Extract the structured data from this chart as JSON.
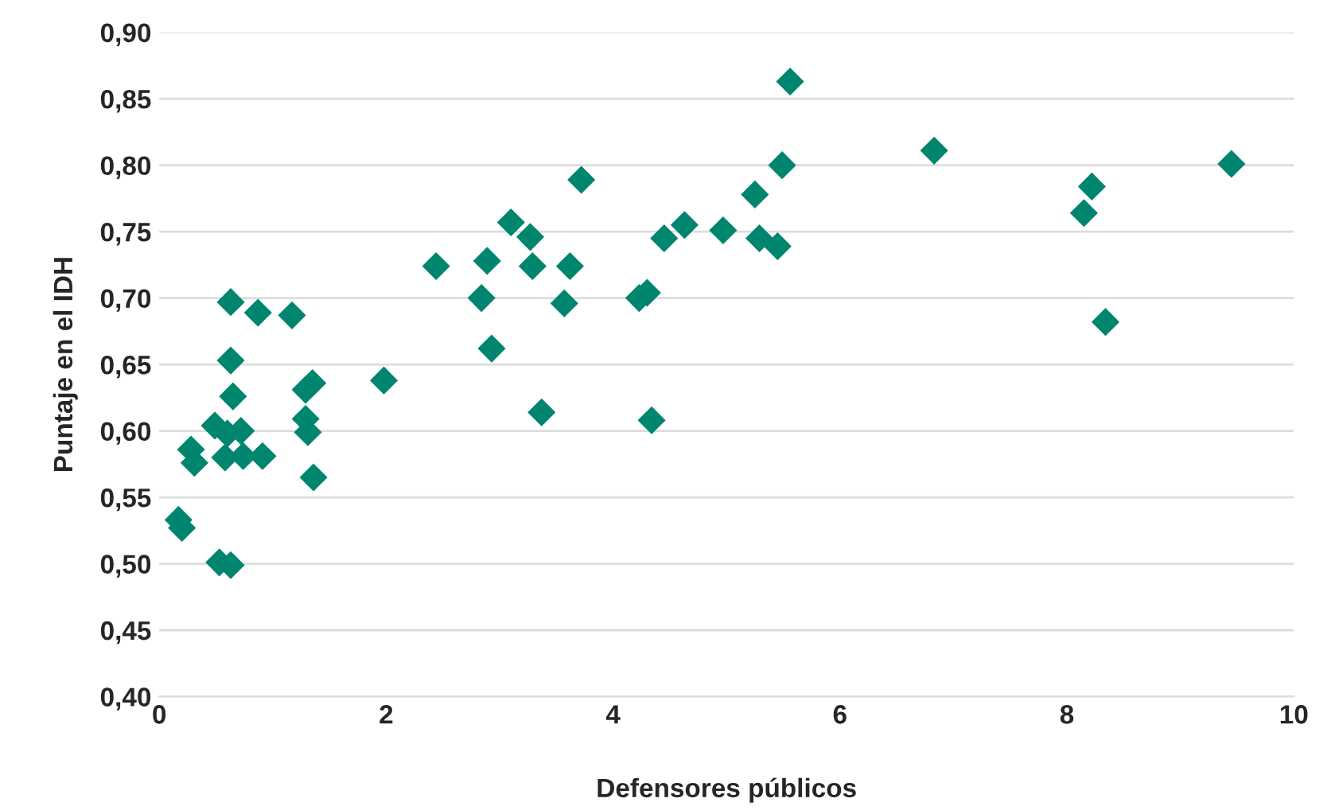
{
  "chart_data": {
    "type": "scatter",
    "xlabel": "Defensores públicos",
    "ylabel": "Puntaje en el IDH",
    "xlim": [
      0,
      10
    ],
    "xticks": [
      0,
      2,
      4,
      6,
      8,
      10
    ],
    "ylim": [
      0.4,
      0.9
    ],
    "yticks": [
      {
        "value": 0.4,
        "label": "0,40"
      },
      {
        "value": 0.45,
        "label": "0,45"
      },
      {
        "value": 0.5,
        "label": "0,50"
      },
      {
        "value": 0.55,
        "label": "0,55"
      },
      {
        "value": 0.6,
        "label": "0,60"
      },
      {
        "value": 0.65,
        "label": "0,65"
      },
      {
        "value": 0.7,
        "label": "0,70"
      },
      {
        "value": 0.75,
        "label": "0,75"
      },
      {
        "value": 0.8,
        "label": "0,80"
      },
      {
        "value": 0.85,
        "label": "0,85"
      },
      {
        "value": 0.9,
        "label": "0,90"
      }
    ],
    "grid": "y",
    "marker": "diamond",
    "series": [
      {
        "color": "#00856f",
        "x": [
          0.17,
          0.2,
          0.28,
          0.31,
          0.49,
          0.53,
          0.58,
          0.6,
          0.63,
          0.63,
          0.65,
          0.63,
          0.72,
          0.74,
          0.91,
          0.87,
          1.17,
          1.29,
          1.29,
          1.31,
          1.35,
          1.36,
          1.98,
          2.44,
          2.84,
          2.89,
          2.93,
          3.1,
          3.27,
          3.29,
          3.37,
          3.57,
          3.62,
          3.72,
          4.23,
          4.3,
          4.34,
          4.45,
          4.63,
          4.97,
          5.25,
          5.29,
          5.45,
          5.49,
          5.56,
          6.83,
          8.15,
          8.22,
          8.34,
          9.45
        ],
        "values": [
          0.533,
          0.527,
          0.586,
          0.576,
          0.604,
          0.501,
          0.58,
          0.598,
          0.697,
          0.653,
          0.626,
          0.499,
          0.6,
          0.581,
          0.581,
          0.689,
          0.687,
          0.631,
          0.609,
          0.599,
          0.636,
          0.565,
          0.638,
          0.724,
          0.7,
          0.728,
          0.662,
          0.757,
          0.746,
          0.724,
          0.614,
          0.696,
          0.724,
          0.789,
          0.7,
          0.704,
          0.608,
          0.745,
          0.755,
          0.751,
          0.778,
          0.745,
          0.739,
          0.8,
          0.863,
          0.811,
          0.764,
          0.784,
          0.682,
          0.801
        ]
      }
    ]
  }
}
